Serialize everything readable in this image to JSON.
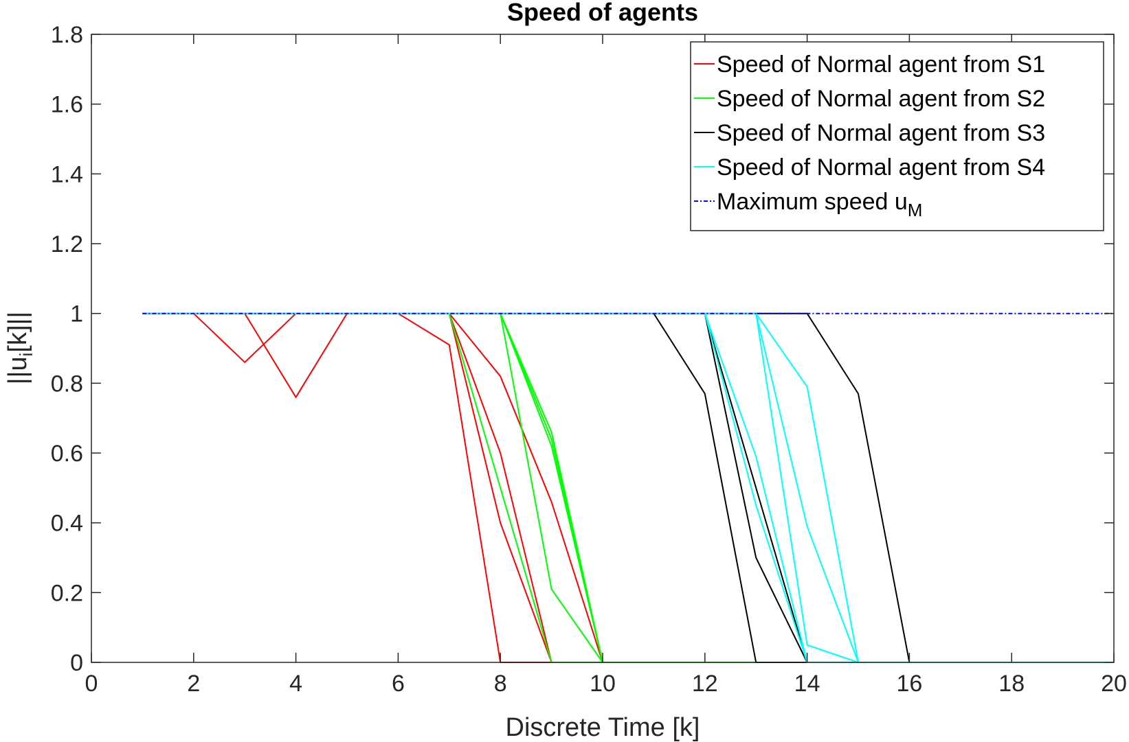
{
  "chart_data": {
    "type": "line",
    "title": "Speed of agents",
    "xlabel": "Discrete Time [k]",
    "ylabel_parts": {
      "pre": "||u",
      "sub": "i",
      "post": "[k]||"
    },
    "xlim": [
      0,
      20
    ],
    "ylim": [
      0,
      1.8
    ],
    "xticks": [
      0,
      2,
      4,
      6,
      8,
      10,
      12,
      14,
      16,
      18,
      20
    ],
    "yticks": [
      0,
      0.2,
      0.4,
      0.6,
      0.8,
      1,
      1.2,
      1.4,
      1.6,
      1.8
    ],
    "ytick_labels": [
      "0",
      "0.2",
      "0.4",
      "0.6",
      "0.8",
      "1",
      "1.2",
      "1.4",
      "1.6",
      "1.8"
    ],
    "grid": false,
    "legend_position": "top-right",
    "legend": [
      {
        "text": "Speed of Normal agent from S1",
        "sub": "",
        "color": "#ff0000",
        "dash": ""
      },
      {
        "text": "Speed of Normal agent from S2",
        "sub": "",
        "color": "#00ff00",
        "dash": ""
      },
      {
        "text": "Speed of Normal agent from S3",
        "sub": "",
        "color": "#000000",
        "dash": ""
      },
      {
        "text": "Speed of Normal agent from S4",
        "sub": "",
        "color": "#00ffff",
        "dash": ""
      },
      {
        "text": "Maximum speed u",
        "sub": "M",
        "color": "#0000ff",
        "dash": "6,3,2,3"
      }
    ],
    "series": [
      {
        "group": "S1",
        "color": "#ff0000",
        "x": [
          1,
          2,
          3,
          4,
          5,
          6,
          7,
          8,
          9,
          10,
          20
        ],
        "y": [
          1,
          1,
          0.86,
          1,
          1,
          1,
          1,
          0.82,
          0.46,
          0,
          0
        ]
      },
      {
        "group": "S1",
        "color": "#ff0000",
        "x": [
          1,
          2,
          3,
          4,
          5,
          6,
          7,
          8,
          9,
          10,
          20
        ],
        "y": [
          1,
          1,
          1,
          0.76,
          1,
          1,
          1,
          0.4,
          0,
          0,
          0
        ]
      },
      {
        "group": "S1",
        "color": "#ff0000",
        "x": [
          1,
          2,
          3,
          4,
          5,
          6,
          7,
          8,
          9,
          10,
          20
        ],
        "y": [
          1,
          1,
          1,
          1,
          1,
          1,
          0.91,
          0,
          0,
          0,
          0
        ]
      },
      {
        "group": "S1",
        "color": "#ff0000",
        "x": [
          1,
          2,
          3,
          4,
          5,
          6,
          7,
          8,
          9,
          10,
          20
        ],
        "y": [
          1,
          1,
          1,
          1,
          1,
          1,
          1,
          0.6,
          0,
          0,
          0
        ]
      },
      {
        "group": "S2",
        "color": "#00ff00",
        "x": [
          1,
          6,
          7,
          8,
          9,
          10,
          20
        ],
        "y": [
          1,
          1,
          1,
          0.5,
          0,
          0,
          0
        ]
      },
      {
        "group": "S2",
        "color": "#00ff00",
        "x": [
          1,
          7,
          8,
          9,
          10,
          20
        ],
        "y": [
          1,
          1,
          1,
          0.66,
          0,
          0
        ]
      },
      {
        "group": "S2",
        "color": "#00ff00",
        "x": [
          1,
          7,
          8,
          9,
          10,
          20
        ],
        "y": [
          1,
          1,
          1,
          0.64,
          0,
          0
        ]
      },
      {
        "group": "S2",
        "color": "#00ff00",
        "x": [
          1,
          7,
          8,
          9,
          10,
          20
        ],
        "y": [
          1,
          1,
          1,
          0.21,
          0,
          0
        ]
      },
      {
        "group": "S2",
        "color": "#00ff00",
        "x": [
          1,
          7,
          8,
          9,
          10,
          20
        ],
        "y": [
          1,
          1,
          1,
          0.62,
          0,
          0
        ]
      },
      {
        "group": "S3",
        "color": "#000000",
        "x": [
          1,
          11,
          12,
          13,
          14,
          20
        ],
        "y": [
          1,
          1,
          0.77,
          0,
          0,
          0
        ]
      },
      {
        "group": "S3",
        "color": "#000000",
        "x": [
          1,
          11,
          12,
          13,
          14,
          20
        ],
        "y": [
          1,
          1,
          1,
          0.3,
          0,
          0
        ]
      },
      {
        "group": "S3",
        "color": "#000000",
        "x": [
          1,
          11,
          12,
          13,
          14,
          20
        ],
        "y": [
          1,
          1,
          1,
          0.5,
          0,
          0
        ]
      },
      {
        "group": "S3",
        "color": "#000000",
        "x": [
          1,
          13,
          14,
          15,
          16,
          20
        ],
        "y": [
          1,
          1,
          1,
          0.77,
          0,
          0
        ]
      },
      {
        "group": "S4",
        "color": "#00ffff",
        "x": [
          1,
          12,
          13,
          14,
          20
        ],
        "y": [
          1,
          1,
          0.59,
          0,
          0
        ]
      },
      {
        "group": "S4",
        "color": "#00ffff",
        "x": [
          1,
          12,
          13,
          14,
          20
        ],
        "y": [
          1,
          1,
          0.45,
          0,
          0
        ]
      },
      {
        "group": "S4",
        "color": "#00ffff",
        "x": [
          1,
          13,
          14,
          15,
          20
        ],
        "y": [
          1,
          1,
          0.79,
          0,
          0
        ]
      },
      {
        "group": "S4",
        "color": "#00ffff",
        "x": [
          1,
          13,
          14,
          15,
          20
        ],
        "y": [
          1,
          1,
          0.39,
          0,
          0
        ]
      },
      {
        "group": "S4",
        "color": "#00ffff",
        "x": [
          1,
          13,
          14,
          15,
          20
        ],
        "y": [
          1,
          1,
          0.05,
          0,
          0
        ]
      },
      {
        "group": "uM",
        "color": "#0000ff",
        "dash": "6,3,2,3",
        "x": [
          1,
          20
        ],
        "y": [
          1,
          1
        ]
      }
    ]
  }
}
